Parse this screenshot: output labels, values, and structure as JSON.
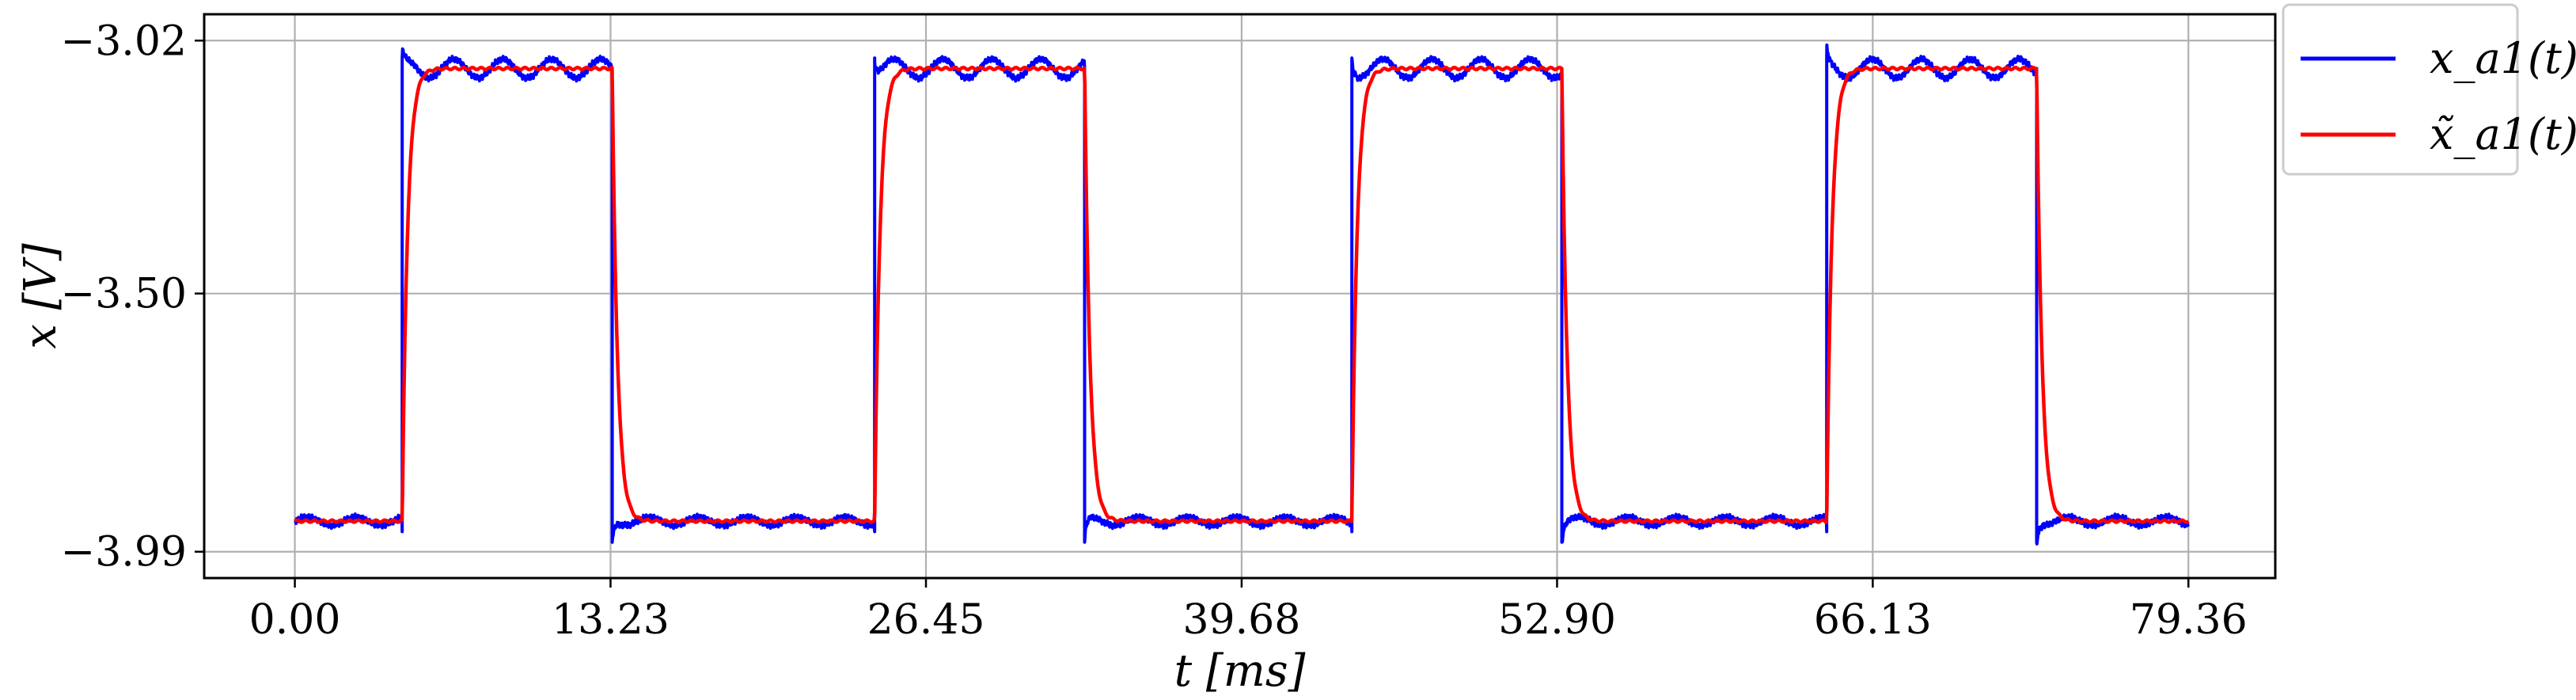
{
  "chart_data": {
    "type": "line",
    "title": "",
    "xlabel": "t [ms]",
    "ylabel": "x [V]",
    "xlim": [
      -3.8,
      83.0
    ],
    "ylim": [
      -4.04,
      -2.97
    ],
    "x_ticks": [
      "0.00",
      "13.23",
      "26.45",
      "39.68",
      "52.90",
      "66.13",
      "79.36"
    ],
    "x_tick_values": [
      0.0,
      13.23,
      26.45,
      39.68,
      52.9,
      66.13,
      79.36
    ],
    "y_ticks": [
      "−3.02",
      "−3.50",
      "−3.99"
    ],
    "y_tick_values": [
      -3.02,
      -3.5,
      -3.99
    ],
    "grid": true,
    "legend_position": "outside-top-right",
    "signal": {
      "low_level": -3.932,
      "high_level": -3.073,
      "rise_times": [
        4.5,
        24.3,
        44.3,
        64.2
      ],
      "fall_times": [
        13.3,
        33.1,
        53.1,
        73.0
      ],
      "x_start": 0.0,
      "x_end": 79.36
    },
    "series": [
      {
        "name": "x_a1(t)",
        "color": "#0000ff",
        "kind": "measured",
        "ripple_amplitude": 0.018,
        "noise_amplitude": 0.006
      },
      {
        "name": "x̃_a1(t)",
        "color": "#ff0000",
        "kind": "model",
        "time_constant": 0.22
      }
    ],
    "legend": [
      {
        "label": "x_a1(t)",
        "color": "#0000ff"
      },
      {
        "label": "x̃_a1(t)",
        "color": "#ff0000"
      }
    ]
  }
}
